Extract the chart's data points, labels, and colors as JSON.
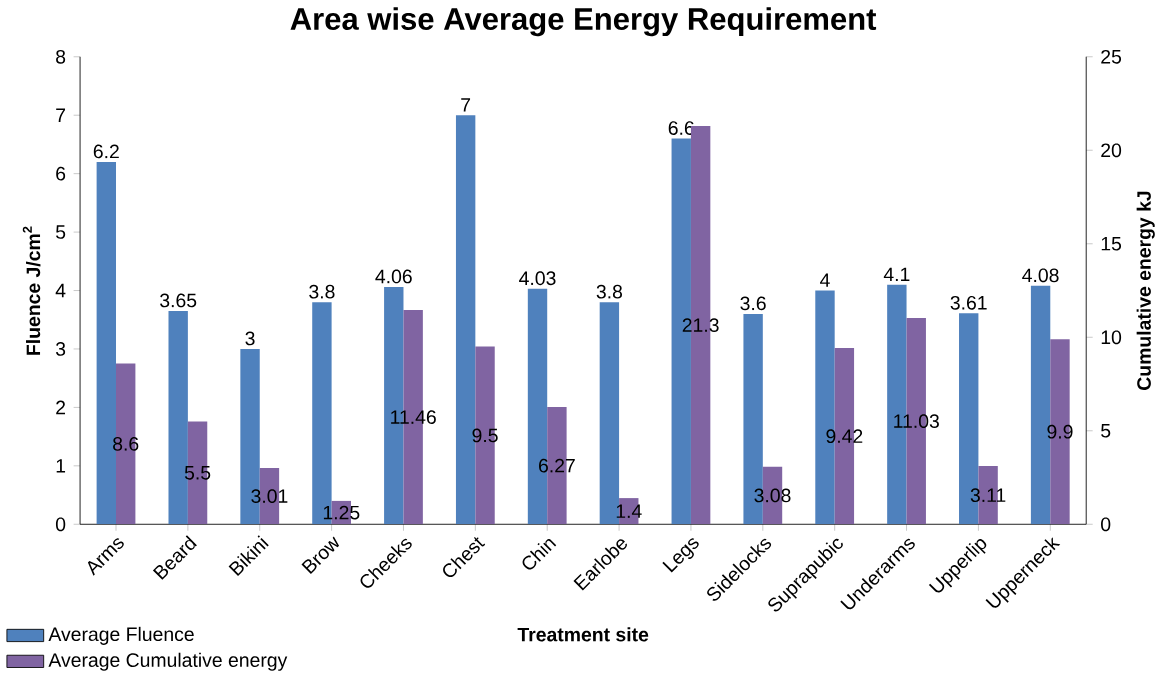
{
  "chart_data": {
    "type": "bar",
    "title": "Area wise Average Energy Requirement",
    "xlabel": "Treatment site",
    "ylabel": "Fluence J/cm$^{2}$",
    "y2label": "Cumulative energy kJ",
    "categories": [
      "Arms",
      "Beard",
      "Bikini",
      "Brow",
      "Cheeks",
      "Chest",
      "Chin",
      "Earlobe",
      "Legs",
      "Sidelocks",
      "Suprapubic",
      "Underarms",
      "Upperlip",
      "Upperneck"
    ],
    "series": [
      {
        "name": "Average Fluence",
        "color": "#4f81bd",
        "values": [
          6.2,
          3.65,
          3,
          3.8,
          4.06,
          7,
          4.03,
          3.8,
          6.6,
          3.6,
          4,
          4.1,
          3.61,
          4.08
        ],
        "value_labels": [
          "6.2",
          "3.65",
          "3",
          "3.8",
          "4.06",
          "7",
          "4.03",
          "3.8",
          "6.6",
          "3.6",
          "4",
          "4.1",
          "3.61",
          "4.08"
        ]
      },
      {
        "name": "Average Cumulative energy",
        "color": "#8064a2",
        "axis": "y2",
        "values": [
          8.6,
          5.5,
          3.01,
          1.25,
          11.46,
          9.5,
          6.27,
          1.4,
          21.3,
          3.08,
          9.42,
          11.03,
          3.11,
          9.9
        ],
        "value_labels": [
          "8.6",
          "5.5",
          "3.01",
          "1.25",
          "11.46",
          "9.5",
          "6.27",
          "1.4",
          "21.3",
          "3.08",
          "9.42",
          "11.03",
          "3.11",
          "9.9"
        ]
      }
    ],
    "ylim": [
      0,
      8
    ],
    "yticks": [
      0,
      1,
      2,
      3,
      4,
      5,
      6,
      7,
      8
    ],
    "y2lim": [
      0,
      25
    ],
    "y2ticks": [
      0,
      5,
      10,
      15,
      20,
      25
    ],
    "legend": "bottom left"
  }
}
